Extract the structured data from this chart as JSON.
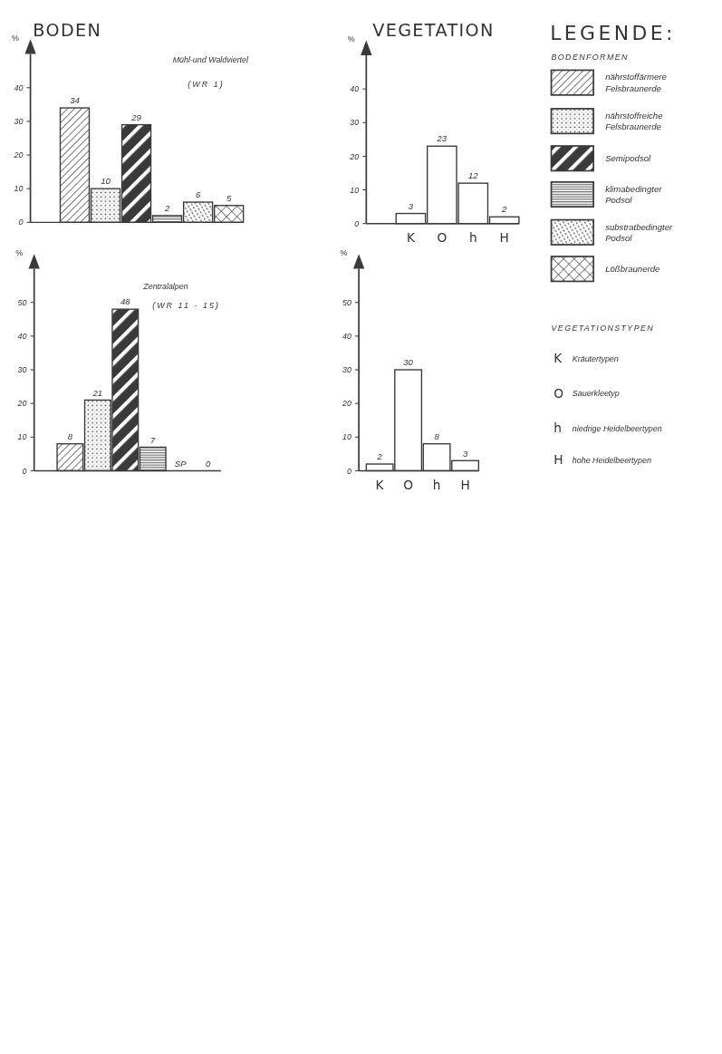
{
  "chart_data": [
    {
      "type": "bar",
      "title": "BODEN",
      "subtitle": "Mühl-und Waldviertel",
      "annotations": [
        "(WR 1)"
      ],
      "ylabel": "%",
      "categories": [
        null,
        null,
        null,
        null,
        null,
        null
      ],
      "values": [
        34,
        10,
        29,
        2,
        6,
        5
      ],
      "colors": [
        "#3a3a3a",
        "#3a3a3a",
        "#3a3a3a",
        "#3a3a3a",
        "#3a3a3a",
        "#3a3a3a"
      ],
      "ylim": [
        0,
        50
      ],
      "yticks": [
        0,
        10,
        20,
        30,
        40
      ],
      "data_labels": true
    },
    {
      "type": "bar",
      "subtitle": "Zentralalpen",
      "annotations": [
        "(WR 11 - 15)",
        "SP",
        "0"
      ],
      "ylabel": "%",
      "categories": [
        null,
        null,
        null,
        null,
        null,
        null
      ],
      "values": [
        8,
        21,
        48,
        7,
        null,
        null
      ],
      "value_labels": [
        "8",
        "21",
        "48",
        "7",
        null,
        null
      ],
      "colors": [
        "#3a3a3a",
        "#3a3a3a",
        "#3a3a3a",
        "#3a3a3a",
        "#3a3a3a",
        "#3a3a3a"
      ],
      "ylim": [
        0,
        60
      ],
      "yticks": [
        0,
        10,
        20,
        30,
        40,
        50
      ]
    },
    {
      "type": "bar",
      "title": "VEGETATION",
      "ylabel": "%",
      "categories": [
        "K",
        "O",
        "h",
        "H"
      ],
      "values": [
        3,
        23,
        12,
        2
      ],
      "color": "#ffffff",
      "ylim": [
        0,
        50
      ],
      "yticks": [
        0,
        10,
        20,
        30,
        40
      ],
      "data_labels": true
    },
    {
      "type": "bar",
      "ylabel": "%",
      "categories": [
        "K",
        "O",
        "h",
        "H"
      ],
      "values": [
        2,
        30,
        8,
        3
      ],
      "color": "#ffffff",
      "ylim": [
        0,
        60
      ],
      "yticks": [
        0,
        10,
        20,
        30,
        40,
        50
      ],
      "data_labels": true
    },
    {
      "type": "other",
      "title": "LEGENDE:",
      "colors": [
        "#3a3a3a",
        "#3a3a3a",
        "#3a3a3a",
        "#3a3a3a",
        "#3a3a3a",
        "#3a3a3a"
      ],
      "annotations": [
        "BODENFORMEN",
        "nährstoffärmere Felsbraunerde",
        "nährstoffreiche Felsbraunerde",
        "Semipodsol",
        "klimabedingter Podsol",
        "substratbedingter Podsol",
        "Lößbraunerde",
        "VEGETATIONSTYPEN",
        "K",
        "Kräutertypen",
        "O",
        "Sauerkleetyp",
        "h",
        "niedrige Heidelbeertypen",
        "H",
        "hohe Heidelbeertypen"
      ]
    }
  ]
}
